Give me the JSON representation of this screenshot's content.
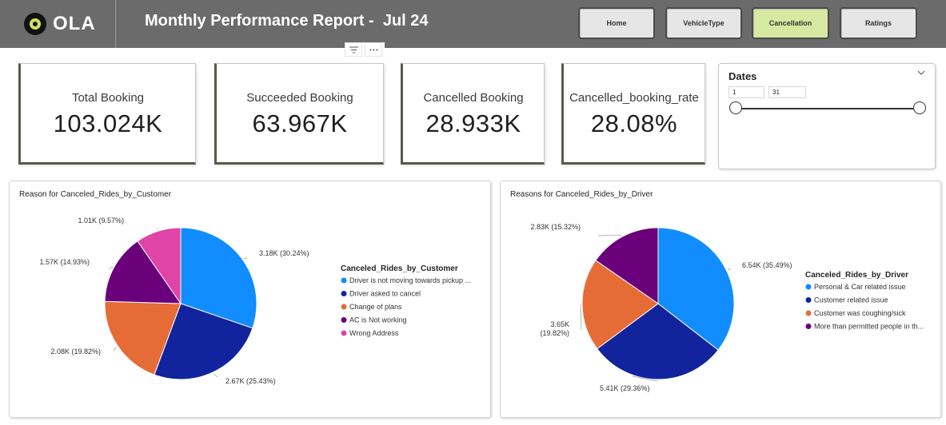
{
  "header": {
    "logo_text": "OLA",
    "title": "Monthly Performance Report -  Jul 24",
    "nav": [
      {
        "label": "Home",
        "active": false
      },
      {
        "label": "VehicleType",
        "active": false
      },
      {
        "label": "Cancellation",
        "active": true
      },
      {
        "label": "Ratings",
        "active": false
      }
    ],
    "toolbar_icons": [
      "filter-icon",
      "more-options-icon"
    ]
  },
  "kpis": [
    {
      "label": "Total Booking",
      "value": "103.024K"
    },
    {
      "label": "Succeeded Booking",
      "value": "63.967K"
    },
    {
      "label": "Cancelled Booking",
      "value": "28.933K"
    },
    {
      "label": "Cancelled_booking_rate",
      "value": "28.08%"
    }
  ],
  "slicer": {
    "title": "Dates",
    "from": "1",
    "to": "31"
  },
  "chart_data": [
    {
      "type": "pie",
      "title": "Reason for Canceled_Rides_by_Customer",
      "legend_title": "Canceled_Rides_by_Customer",
      "legend_position": "right",
      "slices": [
        {
          "label": "Driver is not moving towards pickup ...",
          "value": 3.18,
          "data_label": "3.18K (30.24%)",
          "color": "#118dff"
        },
        {
          "label": "Driver asked to cancel",
          "value": 2.67,
          "data_label": "2.67K (25.43%)",
          "color": "#12239e"
        },
        {
          "label": "Change of plans",
          "value": 2.08,
          "data_label": "2.08K (19.82%)",
          "color": "#e66c37"
        },
        {
          "label": "AC is Not working",
          "value": 1.57,
          "data_label": "1.57K (14.93%)",
          "color": "#6b007b"
        },
        {
          "label": "Wrong Address",
          "value": 1.01,
          "data_label": "1.01K (9.57%)",
          "color": "#e044a7"
        }
      ]
    },
    {
      "type": "pie",
      "title": "Reasons for Canceled_Rides_by_Driver",
      "legend_title": "Canceled_Rides_by_Driver",
      "legend_position": "right",
      "slices": [
        {
          "label": "Personal & Car related issue",
          "value": 6.54,
          "data_label": "6.54K (35.49%)",
          "color": "#118dff"
        },
        {
          "label": "Customer related issue",
          "value": 5.41,
          "data_label": "5.41K (29.36%)",
          "color": "#12239e"
        },
        {
          "label": "Customer was coughing/sick",
          "value": 3.65,
          "data_label": "3.65K (19.82%)",
          "color": "#e66c37"
        },
        {
          "label": "More than permitted people in th...",
          "value": 2.83,
          "data_label": "2.83K (15.32%)",
          "color": "#6b007b"
        }
      ]
    }
  ]
}
